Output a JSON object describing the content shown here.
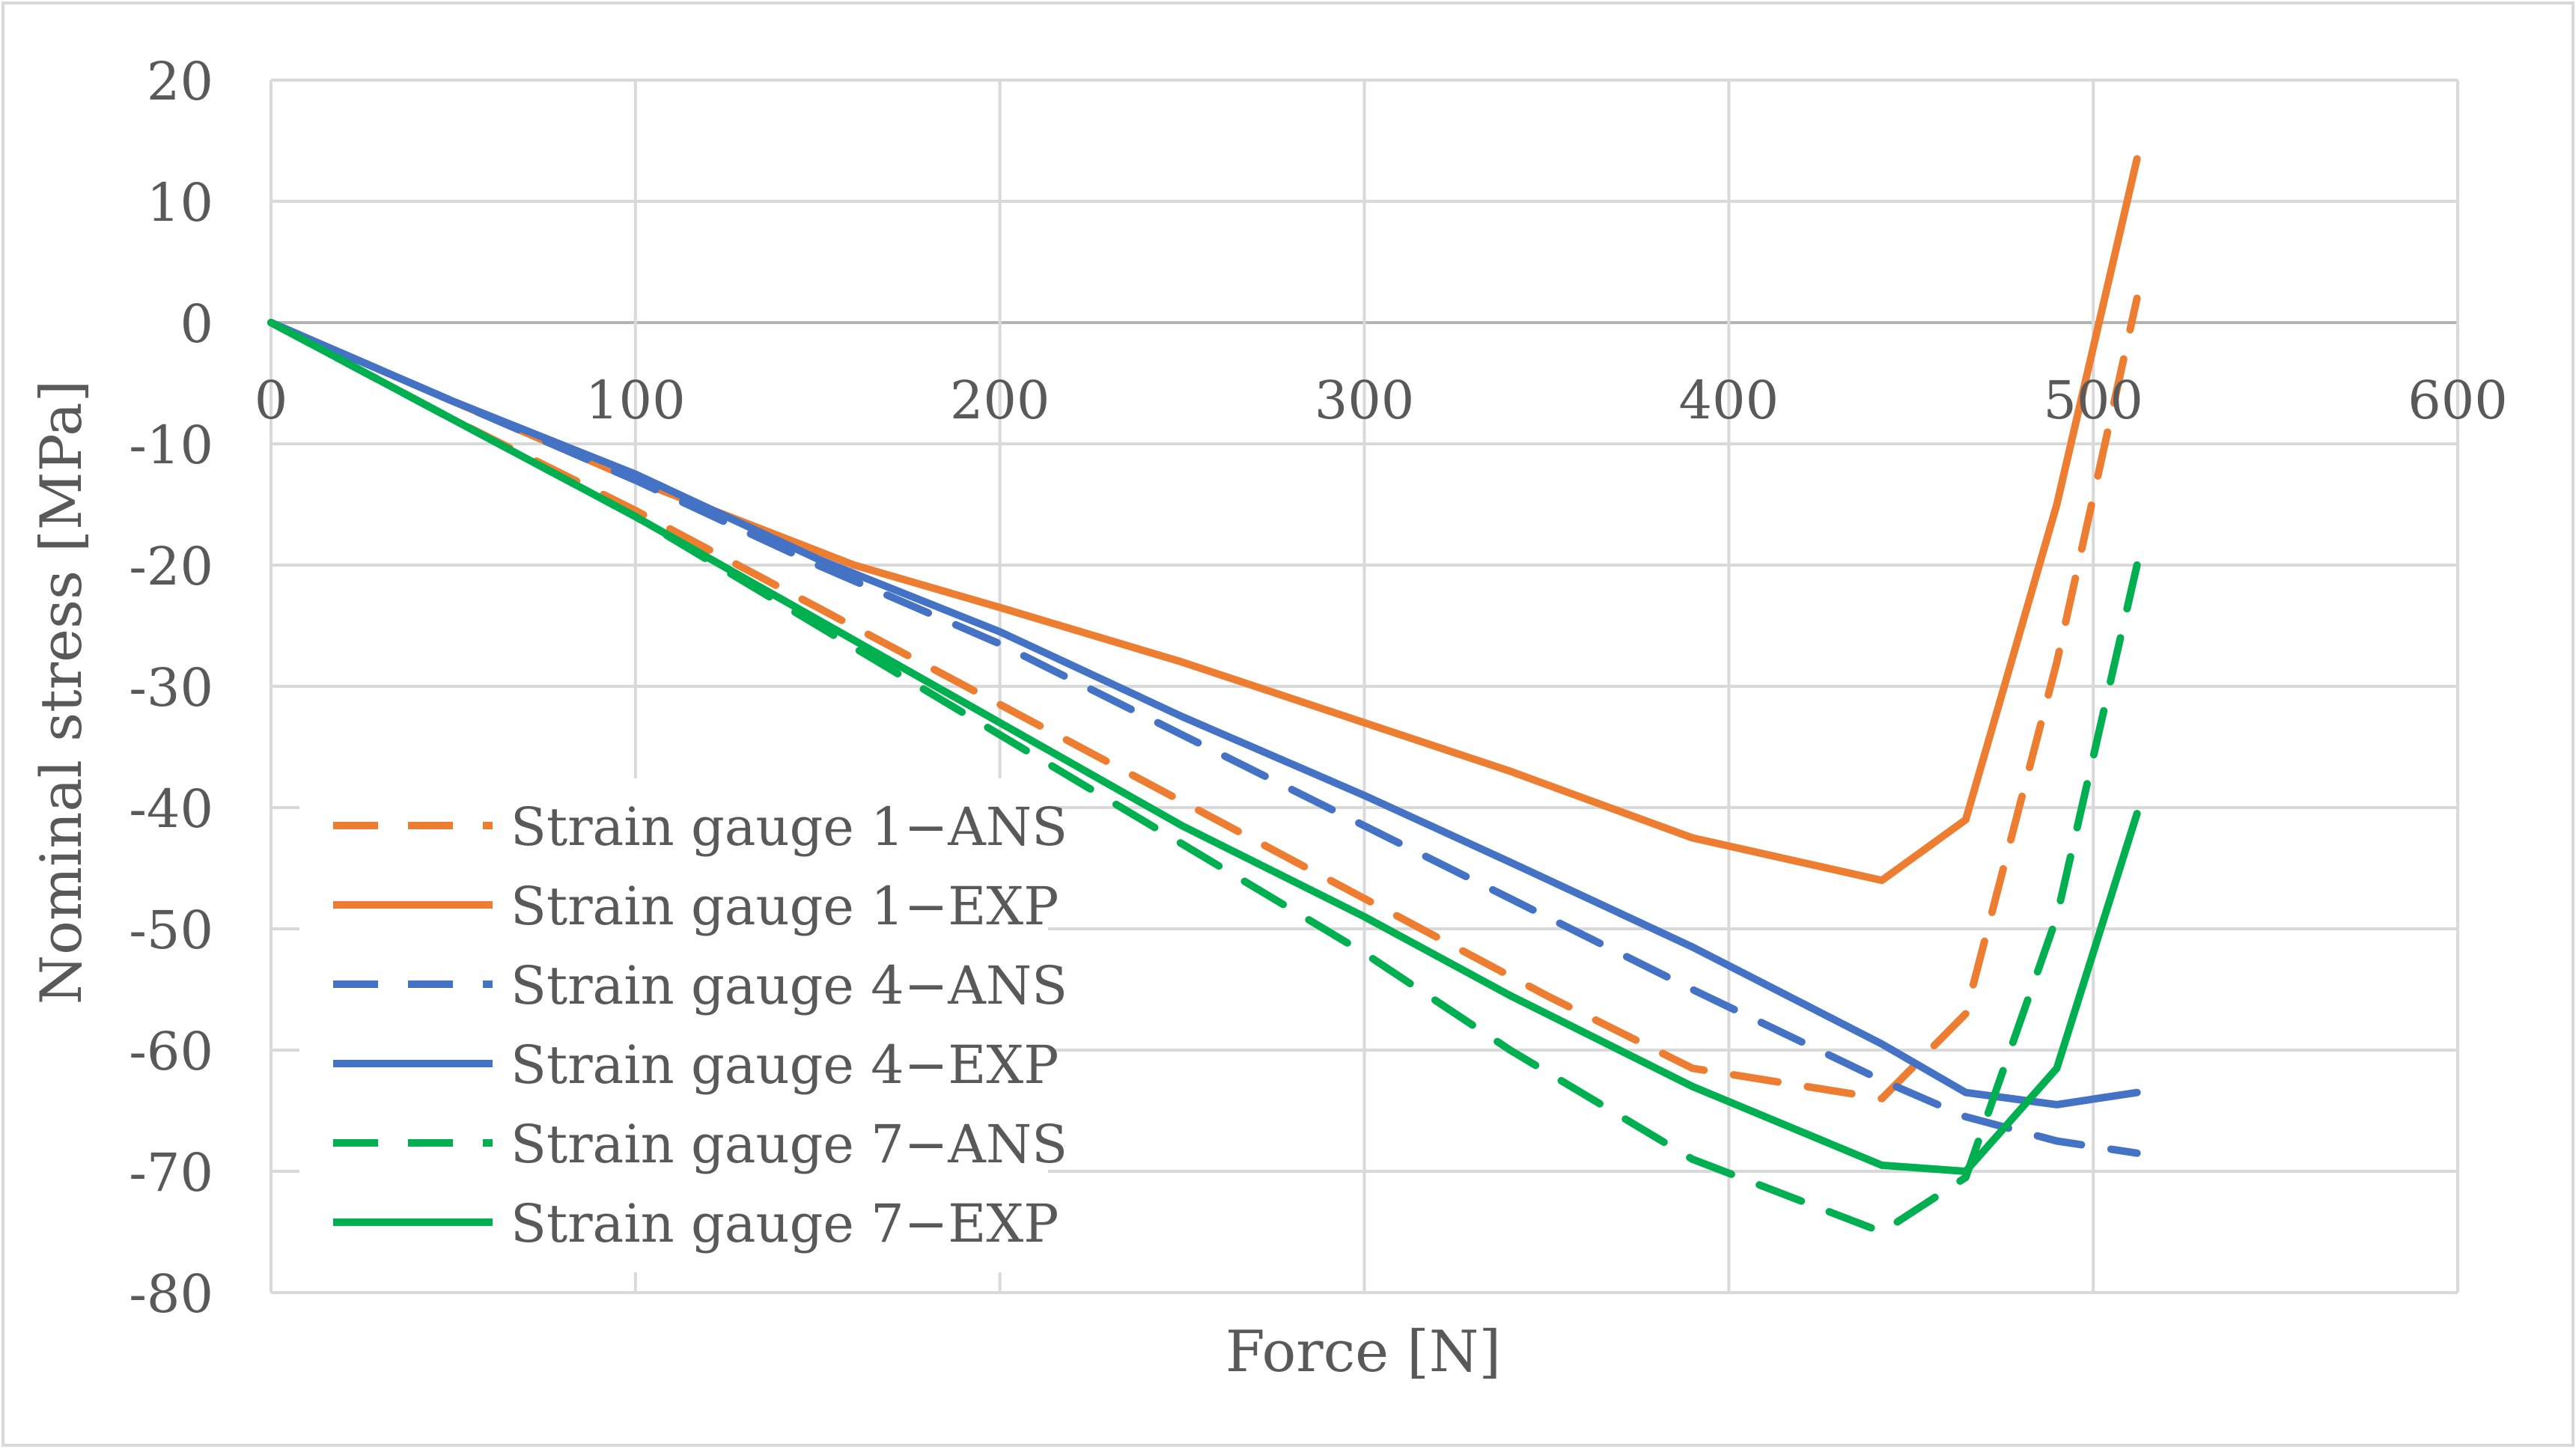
{
  "chart_data": {
    "type": "line",
    "title": "",
    "xlabel": "Force [N]",
    "ylabel": "Nominal stress [MPa]",
    "xlim": [
      0,
      600
    ],
    "ylim": [
      -80,
      20
    ],
    "x_ticks": [
      0,
      100,
      200,
      300,
      400,
      500,
      600
    ],
    "y_ticks": [
      20,
      10,
      0,
      -10,
      -20,
      -30,
      -40,
      -50,
      -60,
      -70,
      -80
    ],
    "grid": true,
    "legend_position": "left",
    "series": [
      {
        "name": "Strain gauge 1−ANS",
        "color": "#ED7D31",
        "dash": "dashed",
        "x": [
          0,
          50,
          100,
          150,
          200,
          250,
          300,
          350,
          390,
          442,
          465,
          490,
          512
        ],
        "y": [
          0,
          -8,
          -15.5,
          -23.5,
          -31.5,
          -39.5,
          -47.5,
          -55.5,
          -61.5,
          -64,
          -57,
          -28,
          2
        ]
      },
      {
        "name": "Strain gauge 1−EXP",
        "color": "#ED7D31",
        "dash": "solid",
        "x": [
          0,
          50,
          100,
          160,
          200,
          250,
          300,
          340,
          390,
          442,
          465,
          490,
          512
        ],
        "y": [
          0,
          -6.5,
          -13,
          -20,
          -23.5,
          -28,
          -33,
          -37,
          -42.5,
          -46,
          -41,
          -15,
          13.5
        ]
      },
      {
        "name": "Strain gauge 4−ANS",
        "color": "#4472C4",
        "dash": "dashed",
        "x": [
          0,
          50,
          100,
          150,
          200,
          250,
          300,
          340,
          390,
          442,
          465,
          490,
          512
        ],
        "y": [
          0,
          -6.5,
          -13,
          -20,
          -26.5,
          -34,
          -41.5,
          -47.5,
          -55,
          -62.5,
          -65.5,
          -67.5,
          -68.5
        ]
      },
      {
        "name": "Strain gauge 4−EXP",
        "color": "#4472C4",
        "dash": "solid",
        "x": [
          0,
          50,
          100,
          150,
          200,
          250,
          300,
          340,
          390,
          442,
          465,
          490,
          512
        ],
        "y": [
          0,
          -6.5,
          -12.5,
          -19.5,
          -25.5,
          -32.5,
          -39,
          -44.5,
          -51.5,
          -59.5,
          -63.5,
          -64.5,
          -63.5
        ]
      },
      {
        "name": "Strain gauge 7−ANS",
        "color": "#00B050",
        "dash": "dashed",
        "x": [
          0,
          50,
          100,
          150,
          200,
          250,
          300,
          340,
          390,
          442,
          465,
          490,
          512
        ],
        "y": [
          0,
          -8,
          -16,
          -25,
          -34,
          -43,
          -52,
          -60,
          -69,
          -75,
          -70.5,
          -49,
          -20
        ]
      },
      {
        "name": "Strain gauge 7−EXP",
        "color": "#00B050",
        "dash": "solid",
        "x": [
          0,
          50,
          100,
          150,
          200,
          250,
          300,
          340,
          390,
          442,
          465,
          490,
          512
        ],
        "y": [
          0,
          -8,
          -16,
          -24.5,
          -33,
          -41.5,
          -49,
          -55.5,
          -63,
          -69.5,
          -70,
          -61.5,
          -40.5
        ]
      }
    ]
  }
}
